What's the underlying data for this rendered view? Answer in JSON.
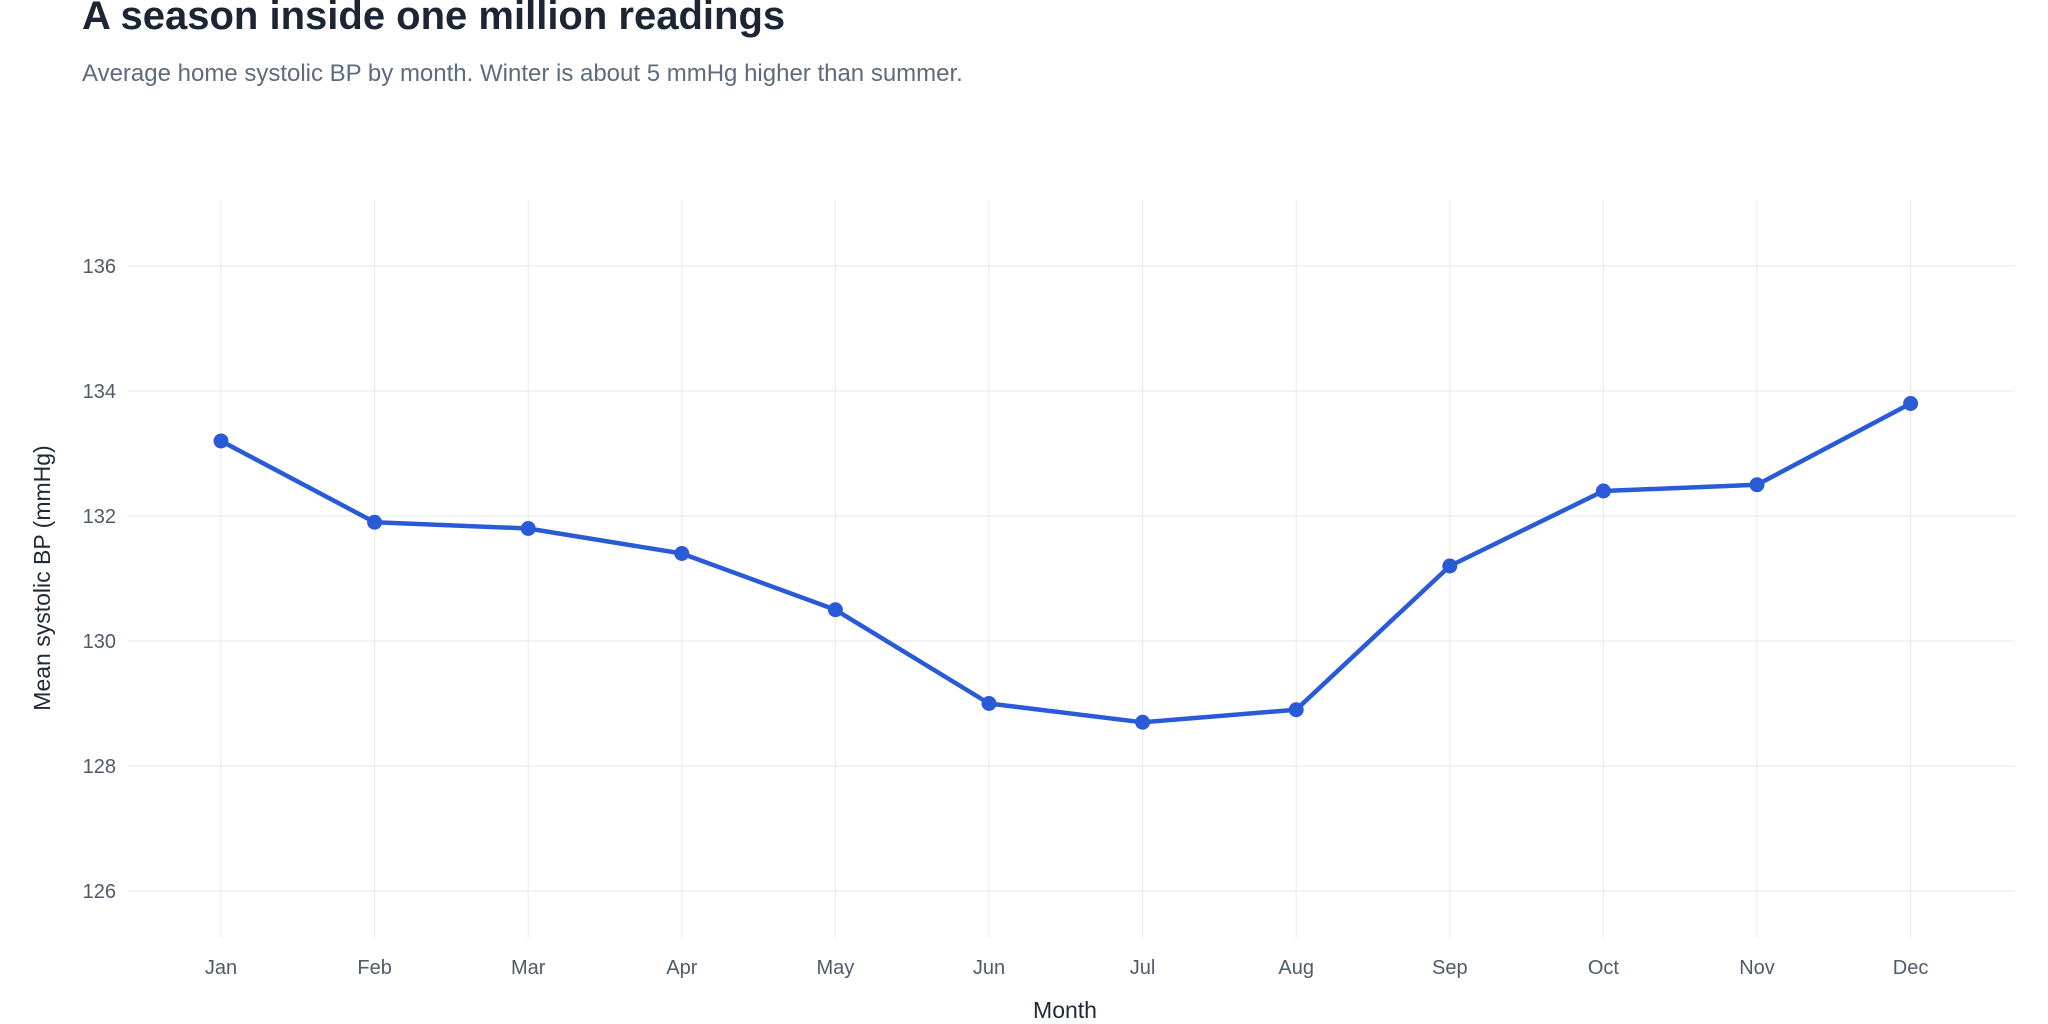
{
  "chart": {
    "title": "A season inside one million readings",
    "subtitle": "Average home systolic BP by month. Winter is about 5 mmHg higher than summer."
  },
  "chart_data": {
    "type": "line",
    "title": "A season inside one million readings",
    "subtitle": "Average home systolic BP by month. Winter is about 5 mmHg higher than summer.",
    "xlabel": "Month",
    "ylabel": "Mean systolic BP (mmHg)",
    "categories": [
      "Jan",
      "Feb",
      "Mar",
      "Apr",
      "May",
      "Jun",
      "Jul",
      "Aug",
      "Sep",
      "Oct",
      "Nov",
      "Dec"
    ],
    "series": [
      {
        "values": [
          133.2,
          131.9,
          131.8,
          131.4,
          130.5,
          129.0,
          128.7,
          128.9,
          131.2,
          132.4,
          132.5,
          133.8
        ],
        "color": "#2a5bd7"
      }
    ],
    "ylim": [
      125,
      137
    ],
    "yticks": [
      126,
      128,
      130,
      132,
      134,
      136
    ],
    "grid": true,
    "legend": "none"
  }
}
